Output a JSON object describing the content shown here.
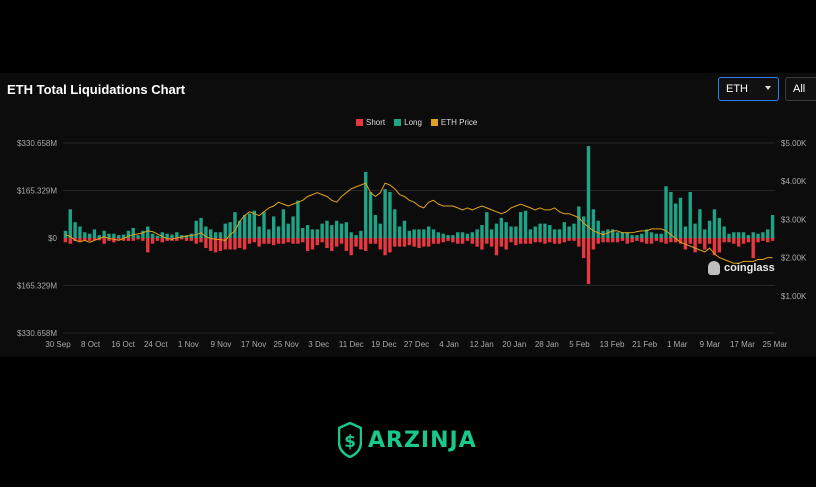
{
  "header": {
    "title": "ETH Total Liquidations Chart",
    "asset_select": "ETH",
    "range_select": "All"
  },
  "watermark": "coinglass",
  "brand": {
    "name": "ARZINJA",
    "color": "#19c98a"
  },
  "colors": {
    "short": "#e8383f",
    "long": "#1fa386",
    "price": "#e0a21e",
    "grid": "#262626",
    "axis_text": "#aaaaaa"
  },
  "chart_data": {
    "type": "bar",
    "title": "ETH Total Liquidations Chart",
    "legend": [
      "Short",
      "Long",
      "ETH Price"
    ],
    "legend_position": "top-center",
    "x_ticks": [
      "30 Sep",
      "8 Oct",
      "16 Oct",
      "24 Oct",
      "1 Nov",
      "9 Nov",
      "17 Nov",
      "25 Nov",
      "3 Dec",
      "11 Dec",
      "19 Dec",
      "27 Dec",
      "4 Jan",
      "12 Jan",
      "20 Jan",
      "28 Jan",
      "5 Feb",
      "13 Feb",
      "21 Feb",
      "1 Mar",
      "9 Mar",
      "17 Mar",
      "25 Mar"
    ],
    "y_left_ticks": [
      "$330.658M",
      "$165.329M",
      "$0",
      "$165.329M",
      "$330.658M"
    ],
    "y_left_range": [
      -330.658,
      330.658
    ],
    "y_left_unit": "M USD",
    "y_right_ticks": [
      "$5.00K",
      "$4.00K",
      "$3.00K",
      "$2.00K",
      "$1.00K"
    ],
    "y_right_range": [
      0,
      5000
    ],
    "grid": true,
    "series": [
      {
        "name": "Long",
        "values": [
          25,
          100,
          55,
          40,
          20,
          15,
          30,
          10,
          25,
          15,
          15,
          10,
          12,
          25,
          35,
          10,
          25,
          40,
          15,
          8,
          20,
          15,
          12,
          20,
          10,
          10,
          15,
          60,
          70,
          40,
          30,
          20,
          20,
          50,
          55,
          90,
          60,
          80,
          85,
          95,
          40,
          90,
          30,
          75,
          40,
          100,
          50,
          75,
          130,
          35,
          45,
          30,
          30,
          50,
          60,
          45,
          60,
          50,
          55,
          20,
          10,
          25,
          230,
          160,
          80,
          50,
          170,
          160,
          100,
          40,
          60,
          25,
          30,
          30,
          30,
          40,
          30,
          20,
          15,
          10,
          10,
          20,
          20,
          15,
          20,
          30,
          45,
          90,
          30,
          50,
          70,
          55,
          40,
          40,
          90,
          95,
          30,
          40,
          50,
          50,
          45,
          30,
          30,
          55,
          40,
          50,
          110,
          75,
          320,
          100,
          60,
          25,
          30,
          30,
          20,
          20,
          20,
          10,
          10,
          15,
          30,
          20,
          15,
          15,
          180,
          160,
          120,
          140,
          40,
          160,
          50,
          100,
          30,
          60,
          100,
          70,
          40,
          15,
          20,
          20,
          20,
          10,
          20,
          15,
          20,
          30,
          80
        ],
        "color": "#1fa386"
      },
      {
        "name": "Short",
        "values": [
          15,
          20,
          10,
          15,
          10,
          10,
          8,
          8,
          20,
          10,
          15,
          5,
          10,
          10,
          10,
          5,
          10,
          50,
          20,
          10,
          15,
          10,
          10,
          10,
          5,
          10,
          10,
          20,
          15,
          35,
          45,
          50,
          45,
          40,
          40,
          40,
          35,
          40,
          20,
          15,
          30,
          20,
          20,
          25,
          20,
          20,
          15,
          20,
          20,
          15,
          45,
          40,
          25,
          15,
          35,
          45,
          30,
          20,
          45,
          60,
          30,
          40,
          45,
          20,
          20,
          40,
          60,
          50,
          30,
          30,
          30,
          25,
          30,
          35,
          30,
          30,
          20,
          20,
          15,
          10,
          15,
          20,
          20,
          10,
          20,
          30,
          40,
          20,
          30,
          60,
          30,
          40,
          15,
          25,
          20,
          20,
          20,
          15,
          15,
          20,
          15,
          20,
          20,
          15,
          10,
          10,
          30,
          70,
          160,
          40,
          20,
          15,
          15,
          15,
          15,
          10,
          20,
          15,
          10,
          15,
          20,
          20,
          10,
          15,
          20,
          15,
          15,
          20,
          40,
          20,
          50,
          20,
          40,
          20,
          60,
          50,
          15,
          15,
          20,
          30,
          20,
          15,
          70,
          15,
          10,
          15,
          10
        ],
        "color": "#e8383f"
      },
      {
        "name": "ETH Price",
        "values": [
          2600,
          2550,
          2450,
          2420,
          2450,
          2400,
          2450,
          2500,
          2550,
          2500,
          2480,
          2450,
          2500,
          2560,
          2600,
          2620,
          2650,
          2700,
          2680,
          2620,
          2550,
          2500,
          2480,
          2520,
          2540,
          2560,
          2580,
          2600,
          2650,
          2550,
          2500,
          2480,
          2470,
          2450,
          2600,
          2700,
          2950,
          3100,
          3200,
          3150,
          3100,
          3200,
          3300,
          3350,
          3450,
          3400,
          3350,
          3400,
          3450,
          3500,
          3600,
          3650,
          3700,
          3650,
          3600,
          3500,
          3450,
          3600,
          3700,
          3800,
          3850,
          3900,
          3950,
          3700,
          3600,
          3700,
          3950,
          3900,
          3800,
          3650,
          3600,
          3500,
          3450,
          3350,
          3300,
          3450,
          3500,
          3400,
          3350,
          3350,
          3350,
          3300,
          3250,
          3300,
          3250,
          3300,
          3350,
          3300,
          3250,
          3200,
          3150,
          3200,
          3300,
          3350,
          3400,
          3350,
          3300,
          3250,
          3300,
          3250,
          3250,
          3300,
          3200,
          3150,
          3150,
          3100,
          3050,
          2900,
          2800,
          2700,
          2650,
          2600,
          2650,
          2700,
          2700,
          2650,
          2650,
          2650,
          2680,
          2700,
          2700,
          2750,
          2750,
          2750,
          2700,
          2600,
          2500,
          2400,
          2350,
          2300,
          2250,
          2200,
          2150,
          2250,
          2100,
          2000,
          1950,
          1900,
          1850,
          1850,
          1900,
          1900,
          1900,
          1950,
          1950,
          2000,
          2000
        ],
        "color": "#e0a21e"
      }
    ]
  }
}
